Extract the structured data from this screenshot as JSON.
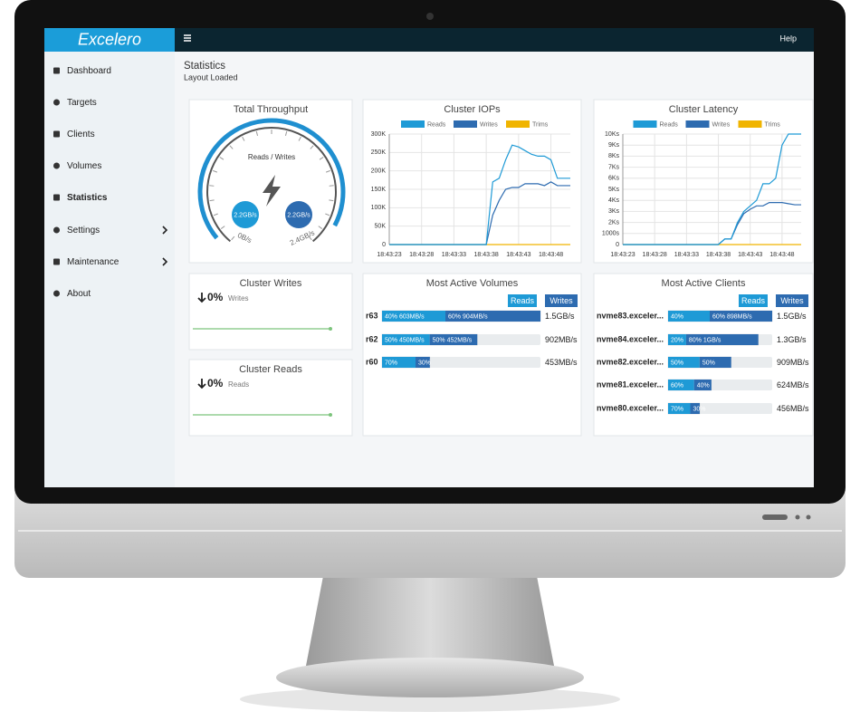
{
  "header": {
    "logo": "Excelero",
    "help": "Help"
  },
  "sidebar": {
    "items": [
      "Dashboard",
      "Targets",
      "Clients",
      "Volumes",
      "Statistics",
      "Settings",
      "Maintenance",
      "About"
    ],
    "active": 4
  },
  "page": {
    "title": "Statistics",
    "subtitle": "Layout Loaded"
  },
  "throughput": {
    "title": "Total Throughput",
    "label": "Reads / Writes",
    "reads": "2.2GB/s",
    "writes": "2.2GB/s",
    "min_label": "0B/s",
    "max_label": "2.4GB/s"
  },
  "chart_data": [
    {
      "type": "line",
      "title": "Cluster IOPs",
      "categories": [
        "18:43:23",
        null,
        null,
        null,
        null,
        "18:43:28",
        null,
        null,
        null,
        null,
        "18:43:33",
        null,
        null,
        null,
        null,
        "18:43:38",
        null,
        null,
        null,
        null,
        "18:43:43",
        null,
        null,
        null,
        null,
        "18:43:48",
        null,
        null,
        null
      ],
      "series": [
        {
          "name": "Reads",
          "color": "#1e9ad6",
          "values": [
            0,
            0,
            0,
            0,
            0,
            0,
            0,
            0,
            0,
            0,
            0,
            0,
            0,
            0,
            0,
            0,
            170000,
            180000,
            230000,
            270000,
            265000,
            255000,
            245000,
            240000,
            240000,
            230000,
            180000,
            180000,
            180000
          ]
        },
        {
          "name": "Writes",
          "color": "#2d6bb0",
          "values": [
            0,
            0,
            0,
            0,
            0,
            0,
            0,
            0,
            0,
            0,
            0,
            0,
            0,
            0,
            0,
            0,
            80000,
            120000,
            150000,
            155000,
            155000,
            165000,
            165000,
            165000,
            160000,
            170000,
            160000,
            160000,
            160000
          ]
        },
        {
          "name": "Trims",
          "color": "#f0b400",
          "values": [
            0,
            0,
            0,
            0,
            0,
            0,
            0,
            0,
            0,
            0,
            0,
            0,
            0,
            0,
            0,
            0,
            0,
            0,
            0,
            0,
            0,
            0,
            0,
            0,
            0,
            0,
            0,
            0,
            0
          ]
        }
      ],
      "ylim": [
        0,
        300000
      ],
      "yticks": [
        0,
        {
          "value": 50000,
          "label": "50K"
        },
        {
          "value": 100000,
          "label": "100K"
        },
        {
          "value": 150000,
          "label": "150K"
        },
        {
          "value": 200000,
          "label": "200K"
        },
        {
          "value": 250000,
          "label": "250K"
        },
        {
          "value": 300000,
          "label": "300K"
        }
      ],
      "grid": true
    },
    {
      "type": "line",
      "title": "Cluster Latency",
      "categories": [
        "18:43:23",
        null,
        null,
        null,
        null,
        "18:43:28",
        null,
        null,
        null,
        null,
        "18:43:33",
        null,
        null,
        null,
        null,
        "18:43:38",
        null,
        null,
        null,
        null,
        "18:43:43",
        null,
        null,
        null,
        null,
        "18:43:48",
        null,
        null,
        null
      ],
      "series": [
        {
          "name": "Reads",
          "color": "#1e9ad6",
          "values": [
            0,
            0,
            0,
            0,
            0,
            0,
            0,
            0,
            0,
            0,
            0,
            0,
            0,
            0,
            0,
            0,
            500,
            500,
            2000,
            3000,
            3500,
            4000,
            5500,
            5500,
            6000,
            9000,
            10000,
            10000,
            10000
          ]
        },
        {
          "name": "Writes",
          "color": "#2d6bb0",
          "values": [
            0,
            0,
            0,
            0,
            0,
            0,
            0,
            0,
            0,
            0,
            0,
            0,
            0,
            0,
            0,
            0,
            500,
            500,
            1800,
            2800,
            3200,
            3500,
            3500,
            3800,
            3800,
            3800,
            3700,
            3600,
            3600
          ]
        },
        {
          "name": "Trims",
          "color": "#f0b400",
          "values": [
            0,
            0,
            0,
            0,
            0,
            0,
            0,
            0,
            0,
            0,
            0,
            0,
            0,
            0,
            0,
            0,
            0,
            0,
            0,
            0,
            0,
            0,
            0,
            0,
            0,
            0,
            0,
            0,
            0
          ]
        }
      ],
      "ylim": [
        0,
        10000
      ],
      "yticks": [
        0,
        {
          "value": 1000,
          "label": "1000s"
        },
        {
          "value": 2000,
          "label": "2Ks"
        },
        {
          "value": 3000,
          "label": "3Ks"
        },
        {
          "value": 4000,
          "label": "4Ks"
        },
        {
          "value": 5000,
          "label": "5Ks"
        },
        {
          "value": 6000,
          "label": "6Ks"
        },
        {
          "value": 7000,
          "label": "7Ks"
        },
        {
          "value": 8000,
          "label": "8Ks"
        },
        {
          "value": 9000,
          "label": "9Ks"
        },
        {
          "value": 10000,
          "label": "10Ks"
        }
      ],
      "grid": true
    }
  ],
  "cluster_writes": {
    "title": "Cluster Writes",
    "change": "0%",
    "label": "Writes"
  },
  "cluster_reads": {
    "title": "Cluster Reads",
    "change": "0%",
    "label": "Reads"
  },
  "volumes": {
    "title": "Most Active Volumes",
    "legend": [
      "Reads",
      "Writes"
    ],
    "rows": [
      {
        "name": "r63",
        "reads": 40,
        "reads_label": "40% 603MB/s",
        "writes": 60,
        "writes_label": "60% 904MB/s",
        "total": 1500,
        "total_label": "1.5GB/s"
      },
      {
        "name": "r62",
        "reads": 50,
        "reads_label": "50% 450MB/s",
        "writes": 50,
        "writes_label": "50% 452MB/s",
        "total": 902,
        "total_label": "902MB/s"
      },
      {
        "name": "r60",
        "reads": 70,
        "reads_label": "70%",
        "writes": 30,
        "writes_label": "30%",
        "total": 453,
        "total_label": "453MB/s"
      }
    ]
  },
  "clients": {
    "title": "Most Active Clients",
    "legend": [
      "Reads",
      "Writes"
    ],
    "rows": [
      {
        "name": "nvme83.exceler...",
        "reads": 40,
        "reads_label": "40%",
        "writes": 60,
        "writes_label": "60% 898MB/s",
        "total": 1500,
        "total_label": "1.5GB/s"
      },
      {
        "name": "nvme84.exceler...",
        "reads": 20,
        "reads_label": "20%",
        "writes": 80,
        "writes_label": "80% 1GB/s",
        "total": 1300,
        "total_label": "1.3GB/s"
      },
      {
        "name": "nvme82.exceler...",
        "reads": 50,
        "reads_label": "50%",
        "writes": 50,
        "writes_label": "50%",
        "total": 909,
        "total_label": "909MB/s"
      },
      {
        "name": "nvme81.exceler...",
        "reads": 60,
        "reads_label": "60%",
        "writes": 40,
        "writes_label": "40%",
        "total": 624,
        "total_label": "624MB/s"
      },
      {
        "name": "nvme80.exceler...",
        "reads": 70,
        "reads_label": "70%",
        "writes": 30,
        "writes_label": "30%",
        "total": 456,
        "total_label": "456MB/s"
      }
    ]
  }
}
